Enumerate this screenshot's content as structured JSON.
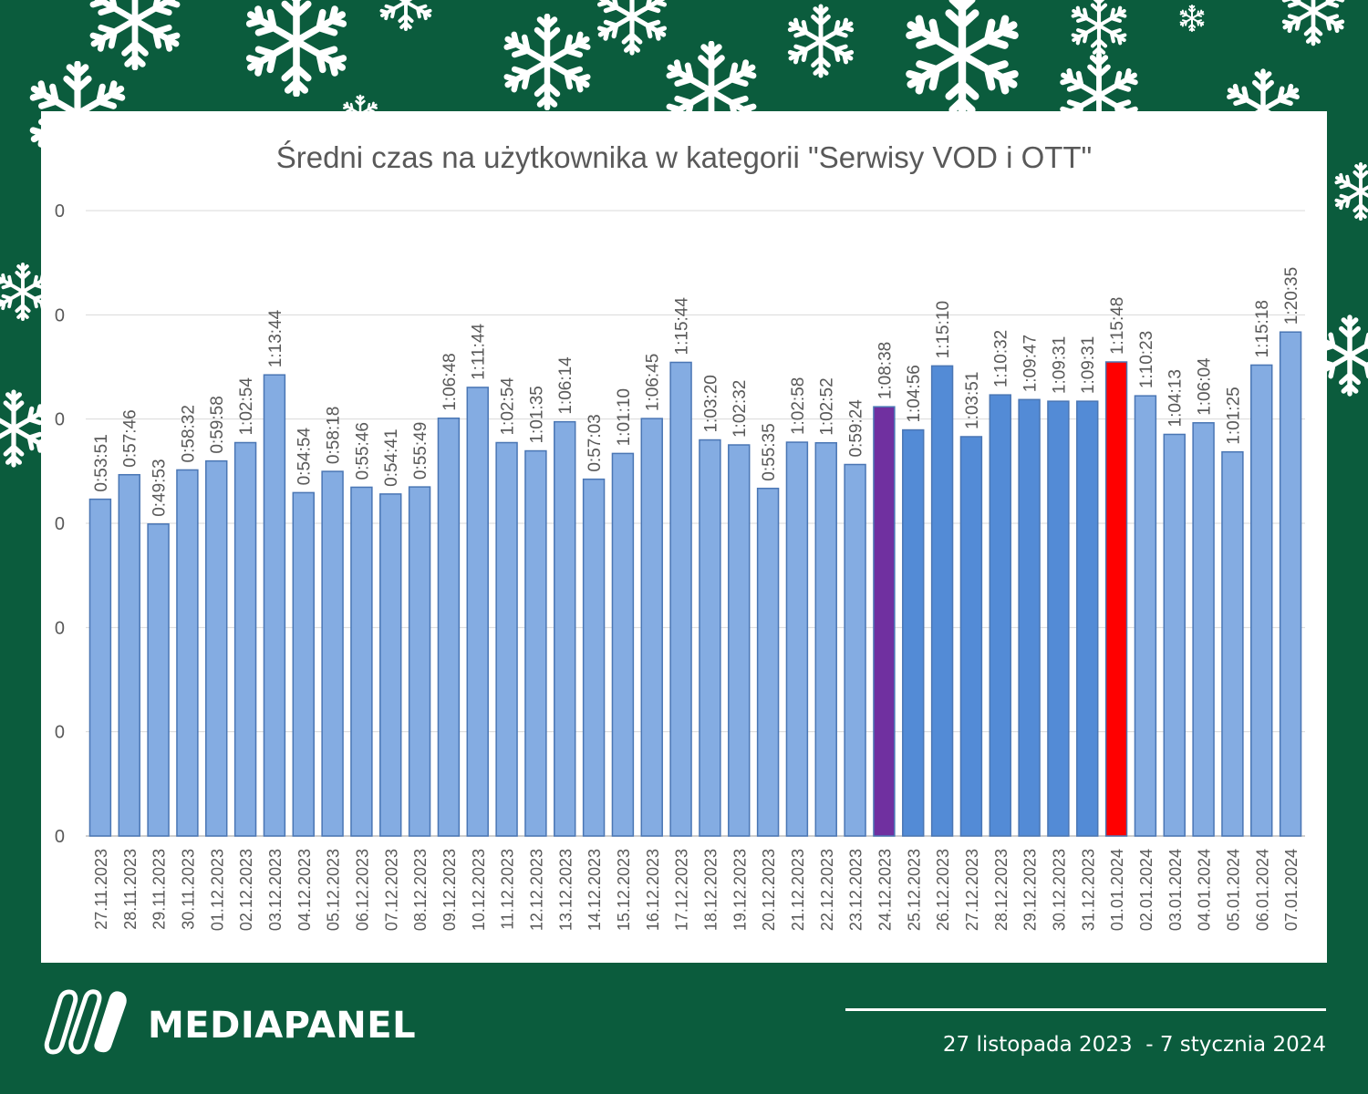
{
  "colors": {
    "background": "#0b5c3d",
    "panel": "#ffffff",
    "bar_light": "#84ace2",
    "bar_mid": "#538bd6",
    "bar_highlight_purple": "#7030a0",
    "bar_highlight_red": "#ff0000",
    "bar_stroke": "#4a76b4",
    "text": "#595959"
  },
  "chart_data": {
    "type": "bar",
    "title": "Średni czas na użytkownika w kategorii \"Serwisy VOD i OTT\"",
    "xlabel": "",
    "ylabel": "",
    "ylim_seconds": [
      0,
      6000
    ],
    "y_tick_labels": [
      "0",
      "0",
      "0",
      "0",
      "0",
      "0",
      "0"
    ],
    "grid": true,
    "legend": "none",
    "categories": [
      "27.11.2023",
      "28.11.2023",
      "29.11.2023",
      "30.11.2023",
      "01.12.2023",
      "02.12.2023",
      "03.12.2023",
      "04.12.2023",
      "05.12.2023",
      "06.12.2023",
      "07.12.2023",
      "08.12.2023",
      "09.12.2023",
      "10.12.2023",
      "11.12.2023",
      "12.12.2023",
      "13.12.2023",
      "14.12.2023",
      "15.12.2023",
      "16.12.2023",
      "17.12.2023",
      "18.12.2023",
      "19.12.2023",
      "20.12.2023",
      "21.12.2023",
      "22.12.2023",
      "23.12.2023",
      "24.12.2023",
      "25.12.2023",
      "26.12.2023",
      "27.12.2023",
      "28.12.2023",
      "29.12.2023",
      "30.12.2023",
      "31.12.2023",
      "01.01.2024",
      "02.01.2024",
      "03.01.2024",
      "04.01.2024",
      "05.01.2024",
      "06.01.2024",
      "07.01.2024"
    ],
    "values": [
      "0:53:51",
      "0:57:46",
      "0:49:53",
      "0:58:32",
      "0:59:58",
      "1:02:54",
      "1:13:44",
      "0:54:54",
      "0:58:18",
      "0:55:46",
      "0:54:41",
      "0:55:49",
      "1:06:48",
      "1:11:44",
      "1:02:54",
      "1:01:35",
      "1:06:14",
      "0:57:03",
      "1:01:10",
      "1:06:45",
      "1:15:44",
      "1:03:20",
      "1:02:32",
      "0:55:35",
      "1:02:58",
      "1:02:52",
      "0:59:24",
      "1:08:38",
      "1:04:56",
      "1:15:10",
      "1:03:51",
      "1:10:32",
      "1:09:47",
      "1:09:31",
      "1:09:31",
      "1:15:48",
      "1:10:23",
      "1:04:13",
      "1:06:04",
      "1:01:25",
      "1:15:18",
      "1:20:35"
    ],
    "bar_colors": [
      "light",
      "light",
      "light",
      "light",
      "light",
      "light",
      "light",
      "light",
      "light",
      "light",
      "light",
      "light",
      "light",
      "light",
      "light",
      "light",
      "light",
      "light",
      "light",
      "light",
      "light",
      "light",
      "light",
      "light",
      "light",
      "light",
      "light",
      "purple",
      "mid",
      "mid",
      "mid",
      "mid",
      "mid",
      "mid",
      "mid",
      "red",
      "light",
      "light",
      "light",
      "light",
      "light",
      "light"
    ]
  },
  "branding": {
    "brand_name": "MEDIAPANEL",
    "date_range": "27 listopada 2023  - 7 stycznia 2024"
  }
}
